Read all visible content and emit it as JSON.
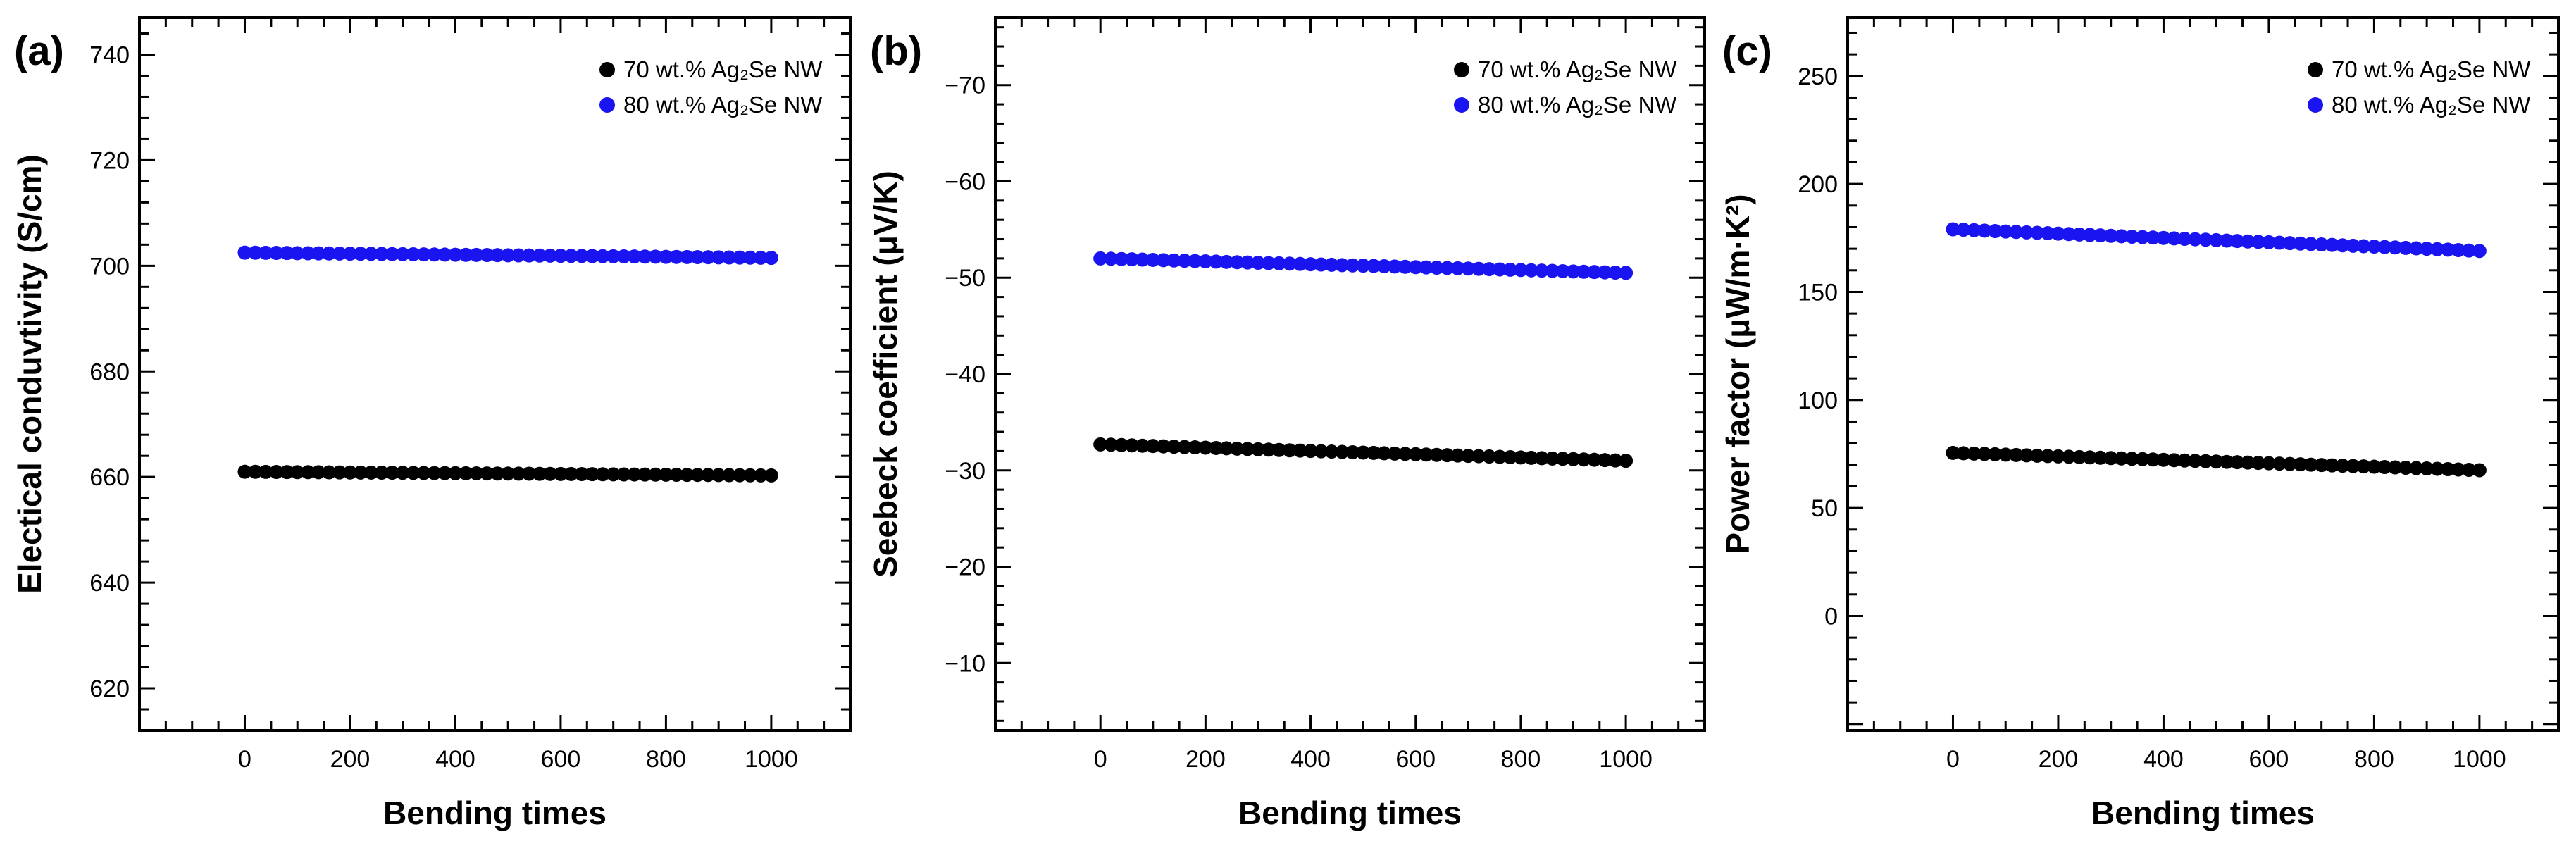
{
  "colors": {
    "series_70": "#000000",
    "series_80": "#1a14f0"
  },
  "chart_data": [
    {
      "type": "scatter",
      "panel_label": "(a)",
      "xlabel": "Bending times",
      "ylabel": "Electical conduvtivity (S/cm)",
      "xlim": [
        -200,
        1150
      ],
      "ylim": [
        612,
        747
      ],
      "x_ticks": [
        0,
        200,
        400,
        600,
        800,
        1000
      ],
      "y_ticks": [
        620,
        640,
        660,
        680,
        700,
        720,
        740
      ],
      "x_tick_labels": [
        "0",
        "200",
        "400",
        "600",
        "800",
        "1000"
      ],
      "y_tick_labels": [
        "620",
        "640",
        "660",
        "680",
        "700",
        "720",
        "740"
      ],
      "grid": false,
      "legend_position": "top-right",
      "series": [
        {
          "name": "70 wt.% Ag₂Se NW",
          "start": 661.0,
          "end": 660.3
        },
        {
          "name": "80 wt.% Ag₂Se NW",
          "start": 702.5,
          "end": 701.5
        }
      ]
    },
    {
      "type": "scatter",
      "panel_label": "(b)",
      "xlabel": "Bending times",
      "ylabel": "Seebeck coefficient (μV/K)",
      "xlim": [
        -200,
        1150
      ],
      "ylim": [
        -3,
        -77
      ],
      "x_ticks": [
        0,
        200,
        400,
        600,
        800,
        1000
      ],
      "y_ticks": [
        -10,
        -20,
        -30,
        -40,
        -50,
        -60,
        -70
      ],
      "x_tick_labels": [
        "0",
        "200",
        "400",
        "600",
        "800",
        "1000"
      ],
      "y_tick_labels": [
        "−10",
        "−20",
        "−30",
        "−40",
        "−50",
        "−60",
        "−70"
      ],
      "grid": false,
      "legend_position": "top-right",
      "series": [
        {
          "name": "70 wt.% Ag₂Se NW",
          "start": -32.7,
          "end": -31.0
        },
        {
          "name": "80 wt.% Ag₂Se NW",
          "start": -52.0,
          "end": -50.5
        }
      ]
    },
    {
      "type": "scatter",
      "panel_label": "(c)",
      "xlabel": "Bending times",
      "ylabel": "Power factor (μW/m·K²)",
      "xlim": [
        -200,
        1150
      ],
      "ylim": [
        -53,
        277
      ],
      "x_ticks": [
        0,
        200,
        400,
        600,
        800,
        1000
      ],
      "y_ticks": [
        0,
        50,
        100,
        150,
        200,
        250
      ],
      "x_tick_labels": [
        "0",
        "200",
        "400",
        "600",
        "800",
        "1000"
      ],
      "y_tick_labels": [
        "0",
        "50",
        "100",
        "150",
        "200",
        "250"
      ],
      "grid": false,
      "legend_position": "top-right",
      "series": [
        {
          "name": "70 wt.% Ag₂Se NW",
          "start": 75.5,
          "end": 67.5
        },
        {
          "name": "80 wt.% Ag₂Se NW",
          "start": 179.0,
          "end": 169.0
        }
      ]
    }
  ]
}
